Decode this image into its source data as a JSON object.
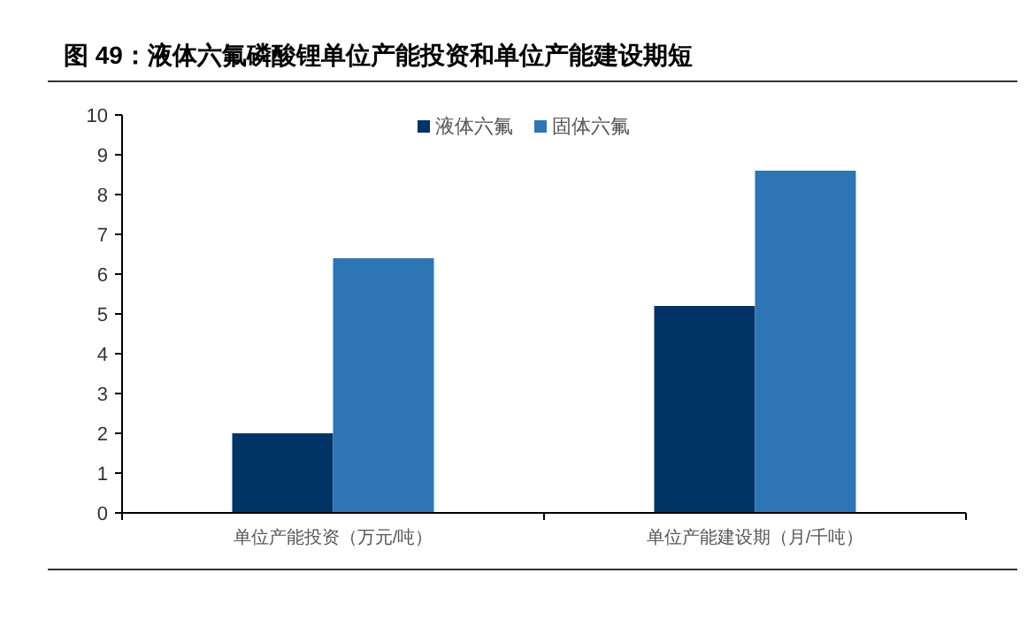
{
  "chart_data": {
    "type": "bar",
    "title": "图 49：液体六氟磷酸锂单位产能投资和单位产能建设期短",
    "categories": [
      "单位产能投资（万元/吨）",
      "单位产能建设期（月/千吨）"
    ],
    "series": [
      {
        "name": "液体六氟",
        "color": "#003366",
        "values": [
          2.0,
          5.2
        ]
      },
      {
        "name": "固体六氟",
        "color": "#2e75b6",
        "values": [
          6.4,
          8.6
        ]
      }
    ],
    "ylim": [
      0,
      10
    ],
    "yticks": [
      0,
      1,
      2,
      3,
      4,
      5,
      6,
      7,
      8,
      9,
      10
    ],
    "grid": false,
    "legend": "top"
  }
}
